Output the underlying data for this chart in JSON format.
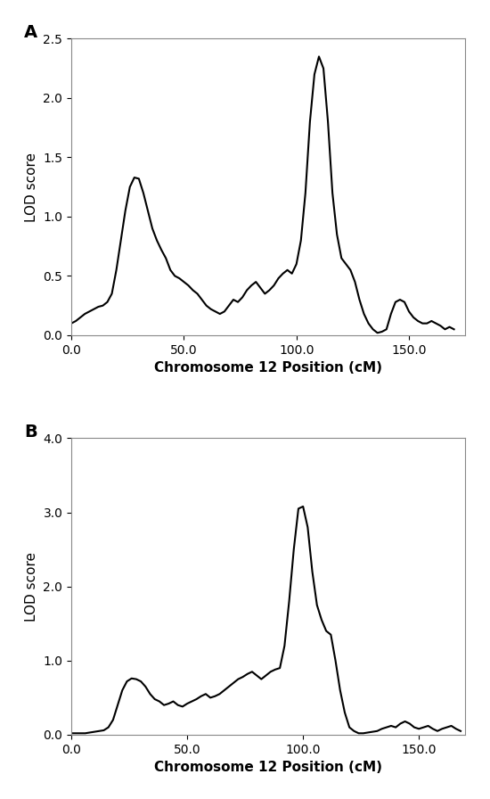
{
  "panel_A_label": "A",
  "panel_B_label": "B",
  "xlabel": "Chromosome 12 Position (cM)",
  "ylabel": "LOD score",
  "xlim_A": [
    0.0,
    175.0
  ],
  "ylim_A": [
    0.0,
    2.5
  ],
  "xlim_B": [
    0.0,
    170.0
  ],
  "ylim_B": [
    0.0,
    4.0
  ],
  "xticks_A": [
    0.0,
    50.0,
    100.0,
    150.0
  ],
  "yticks_A": [
    0.0,
    0.5,
    1.0,
    1.5,
    2.0,
    2.5
  ],
  "xticks_B": [
    0.0,
    50.0,
    100.0,
    150.0
  ],
  "yticks_B": [
    0.0,
    1.0,
    2.0,
    3.0,
    4.0
  ],
  "line_color": "#000000",
  "line_width": 1.5,
  "bg_color": "#ffffff",
  "panel_label_fontsize": 14,
  "axis_label_fontsize": 11,
  "tick_fontsize": 10,
  "x_A": [
    0,
    2,
    4,
    6,
    8,
    10,
    12,
    14,
    16,
    18,
    20,
    22,
    24,
    26,
    28,
    30,
    32,
    34,
    36,
    38,
    40,
    42,
    44,
    46,
    48,
    50,
    52,
    54,
    56,
    58,
    60,
    62,
    64,
    66,
    68,
    70,
    72,
    74,
    76,
    78,
    80,
    82,
    84,
    86,
    88,
    90,
    92,
    94,
    96,
    98,
    100,
    102,
    104,
    106,
    108,
    110,
    112,
    114,
    116,
    118,
    120,
    122,
    124,
    126,
    128,
    130,
    132,
    134,
    136,
    138,
    140,
    142,
    144,
    146,
    148,
    150,
    152,
    154,
    156,
    158,
    160,
    162,
    164,
    166,
    168,
    170
  ],
  "y_A": [
    0.1,
    0.12,
    0.15,
    0.18,
    0.2,
    0.22,
    0.24,
    0.25,
    0.28,
    0.35,
    0.55,
    0.8,
    1.05,
    1.25,
    1.33,
    1.32,
    1.2,
    1.05,
    0.9,
    0.8,
    0.72,
    0.65,
    0.55,
    0.5,
    0.48,
    0.45,
    0.42,
    0.38,
    0.35,
    0.3,
    0.25,
    0.22,
    0.2,
    0.18,
    0.2,
    0.25,
    0.3,
    0.28,
    0.32,
    0.38,
    0.42,
    0.45,
    0.4,
    0.35,
    0.38,
    0.42,
    0.48,
    0.52,
    0.55,
    0.52,
    0.6,
    0.8,
    1.2,
    1.8,
    2.2,
    2.35,
    2.25,
    1.8,
    1.2,
    0.85,
    0.65,
    0.6,
    0.55,
    0.45,
    0.3,
    0.18,
    0.1,
    0.05,
    0.02,
    0.03,
    0.05,
    0.18,
    0.28,
    0.3,
    0.28,
    0.2,
    0.15,
    0.12,
    0.1,
    0.1,
    0.12,
    0.1,
    0.08,
    0.05,
    0.07,
    0.05
  ],
  "x_B": [
    0,
    2,
    4,
    6,
    8,
    10,
    12,
    14,
    16,
    18,
    20,
    22,
    24,
    26,
    28,
    30,
    32,
    34,
    36,
    38,
    40,
    42,
    44,
    46,
    48,
    50,
    52,
    54,
    56,
    58,
    60,
    62,
    64,
    66,
    68,
    70,
    72,
    74,
    76,
    78,
    80,
    82,
    84,
    86,
    88,
    90,
    92,
    94,
    96,
    98,
    100,
    102,
    104,
    106,
    108,
    110,
    112,
    114,
    116,
    118,
    120,
    122,
    124,
    126,
    128,
    130,
    132,
    134,
    136,
    138,
    140,
    142,
    144,
    146,
    148,
    150,
    152,
    154,
    156,
    158,
    160,
    162,
    164,
    166,
    168
  ],
  "y_B": [
    0.02,
    0.02,
    0.02,
    0.02,
    0.03,
    0.04,
    0.05,
    0.06,
    0.1,
    0.2,
    0.4,
    0.6,
    0.72,
    0.76,
    0.75,
    0.72,
    0.65,
    0.55,
    0.48,
    0.45,
    0.4,
    0.42,
    0.45,
    0.4,
    0.38,
    0.42,
    0.45,
    0.48,
    0.52,
    0.55,
    0.5,
    0.52,
    0.55,
    0.6,
    0.65,
    0.7,
    0.75,
    0.78,
    0.82,
    0.85,
    0.8,
    0.75,
    0.8,
    0.85,
    0.88,
    0.9,
    1.2,
    1.8,
    2.5,
    3.05,
    3.08,
    2.8,
    2.2,
    1.75,
    1.55,
    1.4,
    1.35,
    1.0,
    0.6,
    0.3,
    0.1,
    0.05,
    0.02,
    0.02,
    0.03,
    0.04,
    0.05,
    0.08,
    0.1,
    0.12,
    0.1,
    0.15,
    0.18,
    0.15,
    0.1,
    0.08,
    0.1,
    0.12,
    0.08,
    0.05,
    0.08,
    0.1,
    0.12,
    0.08,
    0.05
  ]
}
